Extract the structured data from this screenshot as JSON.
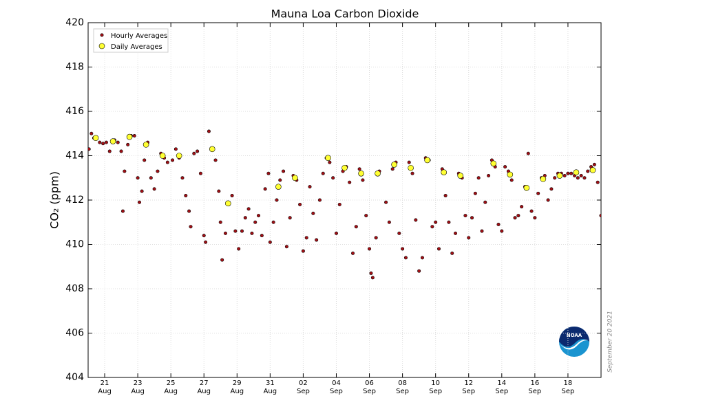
{
  "chart_data": {
    "type": "scatter",
    "title": "Mauna Loa Carbon Dioxide",
    "y_label": "CO₂ (ppm)",
    "annotation": "September 20 2021",
    "xlim": [
      20,
      51
    ],
    "ylim": [
      404,
      420
    ],
    "yticks": [
      404,
      406,
      408,
      410,
      412,
      414,
      416,
      418,
      420
    ],
    "xticks": [
      {
        "value": 21,
        "label": "21\nAug"
      },
      {
        "value": 23,
        "label": "23\nAug"
      },
      {
        "value": 25,
        "label": "25\nAug"
      },
      {
        "value": 27,
        "label": "27\nAug"
      },
      {
        "value": 29,
        "label": "29\nAug"
      },
      {
        "value": 31,
        "label": "31\nAug"
      },
      {
        "value": 33,
        "label": "02\nSep"
      },
      {
        "value": 35,
        "label": "04\nSep"
      },
      {
        "value": 37,
        "label": "06\nSep"
      },
      {
        "value": 39,
        "label": "08\nSep"
      },
      {
        "value": 41,
        "label": "10\nSep"
      },
      {
        "value": 43,
        "label": "12\nSep"
      },
      {
        "value": 45,
        "label": "14\nSep"
      },
      {
        "value": 47,
        "label": "16\nSep"
      },
      {
        "value": 49,
        "label": "18\nSep"
      }
    ],
    "grid": true,
    "legend": "upper left",
    "series": [
      {
        "name": "Hourly Averages",
        "color": "#a50f15",
        "x": [
          20.05,
          20.2,
          20.35,
          20.7,
          20.9,
          21.1,
          21.3,
          21.6,
          21.8,
          22.0,
          22.1,
          22.2,
          22.4,
          22.6,
          22.8,
          23.0,
          23.1,
          23.25,
          23.4,
          23.6,
          23.8,
          24.0,
          24.2,
          24.4,
          24.6,
          24.8,
          25.1,
          25.3,
          25.5,
          25.7,
          25.9,
          26.1,
          26.2,
          26.4,
          26.6,
          26.8,
          27.0,
          27.1,
          27.3,
          27.5,
          27.7,
          27.9,
          28.0,
          28.1,
          28.3,
          28.5,
          28.7,
          28.9,
          29.1,
          29.3,
          29.5,
          29.7,
          29.9,
          30.1,
          30.3,
          30.5,
          30.7,
          30.9,
          31.0,
          31.2,
          31.4,
          31.6,
          31.8,
          32.0,
          32.2,
          32.4,
          32.6,
          32.8,
          33.0,
          33.2,
          33.4,
          33.6,
          33.8,
          34.0,
          34.2,
          34.4,
          34.6,
          34.8,
          35.0,
          35.2,
          35.4,
          35.6,
          35.8,
          36.0,
          36.2,
          36.4,
          36.6,
          36.8,
          37.0,
          37.1,
          37.2,
          37.4,
          37.6,
          38.0,
          38.2,
          38.4,
          38.6,
          38.8,
          39.0,
          39.2,
          39.4,
          39.6,
          39.8,
          40.0,
          40.2,
          40.4,
          40.6,
          40.8,
          41.0,
          41.2,
          41.4,
          41.6,
          41.8,
          42.0,
          42.2,
          42.4,
          42.6,
          42.8,
          43.0,
          43.2,
          43.4,
          43.6,
          43.8,
          44.0,
          44.2,
          44.4,
          44.6,
          44.8,
          45.0,
          45.2,
          45.4,
          45.6,
          45.8,
          46.0,
          46.2,
          46.4,
          46.6,
          46.8,
          47.0,
          47.2,
          47.4,
          47.6,
          47.8,
          48.0,
          48.2,
          48.4,
          48.6,
          48.8,
          49.0,
          49.2,
          49.4,
          49.6,
          49.8,
          50.0,
          50.2,
          50.4,
          50.6,
          50.8,
          51.0
        ],
        "values": [
          414.3,
          415.0,
          414.8,
          414.6,
          414.55,
          414.6,
          414.2,
          414.7,
          414.6,
          414.2,
          411.5,
          413.3,
          414.5,
          414.9,
          414.9,
          413.0,
          411.9,
          412.4,
          413.8,
          414.6,
          413.0,
          412.5,
          413.3,
          414.1,
          413.9,
          413.7,
          413.8,
          414.3,
          413.9,
          413.0,
          412.2,
          411.5,
          410.8,
          414.1,
          414.2,
          413.2,
          410.4,
          410.1,
          415.1,
          414.3,
          413.8,
          412.4,
          411.0,
          409.3,
          410.5,
          411.8,
          412.2,
          410.6,
          409.8,
          410.6,
          411.2,
          411.6,
          410.5,
          411.0,
          411.3,
          410.4,
          412.5,
          413.2,
          410.1,
          411.0,
          412.0,
          412.9,
          413.3,
          409.9,
          411.2,
          413.1,
          412.9,
          411.8,
          409.7,
          410.3,
          412.6,
          411.4,
          410.2,
          412.0,
          413.2,
          413.9,
          413.7,
          413.0,
          410.5,
          411.8,
          413.3,
          413.5,
          412.8,
          409.6,
          410.8,
          413.4,
          412.9,
          411.3,
          409.8,
          408.7,
          408.5,
          410.3,
          413.3,
          411.9,
          411.0,
          413.4,
          413.7,
          410.5,
          409.8,
          409.4,
          413.7,
          413.2,
          411.1,
          408.8,
          409.4,
          413.9,
          413.8,
          410.8,
          411.0,
          409.8,
          413.4,
          412.2,
          411.0,
          409.6,
          410.5,
          413.2,
          413.0,
          411.3,
          410.3,
          411.2,
          412.3,
          413.0,
          410.6,
          411.9,
          413.1,
          413.8,
          413.5,
          410.9,
          410.6,
          413.5,
          413.3,
          412.9,
          411.2,
          411.3,
          411.7,
          412.6,
          414.1,
          411.5,
          411.2,
          412.3,
          413.0,
          413.1,
          412.0,
          412.5,
          413.0,
          413.2,
          413.2,
          413.1,
          413.2,
          413.2,
          413.1,
          413.0,
          413.1,
          413.0,
          413.3,
          413.5,
          413.6,
          412.8,
          411.3
        ]
      },
      {
        "name": "Daily Averages",
        "color": "#ffff33",
        "x": [
          20.46,
          21.5,
          22.5,
          23.5,
          24.5,
          25.5,
          27.5,
          28.46,
          31.5,
          32.5,
          34.5,
          35.5,
          36.5,
          37.5,
          38.5,
          39.5,
          40.5,
          41.5,
          42.5,
          44.5,
          45.5,
          46.5,
          47.5,
          48.5,
          49.5,
          50.5
        ],
        "values": [
          414.8,
          414.65,
          414.85,
          414.5,
          414.0,
          414.0,
          414.3,
          411.85,
          412.6,
          413.0,
          413.9,
          413.45,
          413.2,
          413.2,
          413.6,
          413.45,
          413.8,
          413.25,
          413.1,
          413.65,
          413.15,
          412.55,
          412.95,
          413.1,
          413.25,
          413.35
        ]
      }
    ]
  }
}
